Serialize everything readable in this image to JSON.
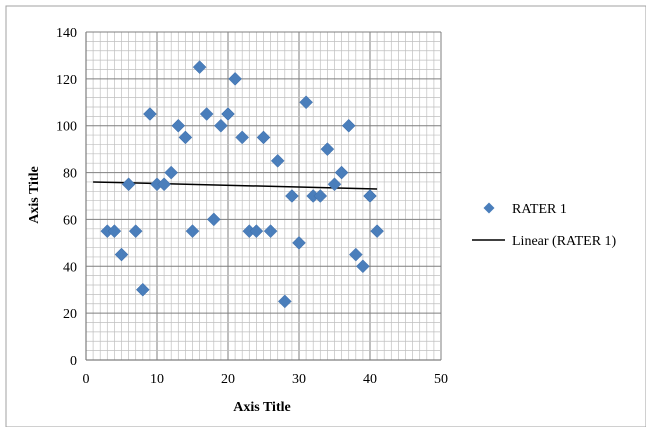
{
  "chart_data": {
    "type": "scatter",
    "title": "",
    "xlabel": "Axis Title",
    "ylabel": "Axis Title",
    "xlim": [
      0,
      50
    ],
    "ylim": [
      0,
      140
    ],
    "x_ticks": [
      0,
      10,
      20,
      30,
      40,
      50
    ],
    "y_ticks": [
      0,
      20,
      40,
      60,
      80,
      100,
      120,
      140
    ],
    "grid": true,
    "legend_position": "right",
    "series": [
      {
        "name": "RATER 1",
        "marker": "diamond",
        "color": "#4a7ebb",
        "x": [
          3,
          4,
          5,
          6,
          7,
          8,
          9,
          10,
          11,
          12,
          13,
          14,
          15,
          16,
          17,
          18,
          19,
          20,
          21,
          22,
          23,
          24,
          25,
          26,
          27,
          28,
          29,
          30,
          31,
          32,
          33,
          34,
          35,
          36,
          37,
          38,
          39,
          40,
          41
        ],
        "y": [
          55,
          55,
          45,
          75,
          55,
          30,
          105,
          75,
          75,
          80,
          100,
          95,
          55,
          125,
          105,
          60,
          100,
          105,
          120,
          95,
          55,
          55,
          95,
          55,
          85,
          25,
          70,
          50,
          110,
          70,
          70,
          90,
          75,
          80,
          100,
          45,
          40,
          70,
          55
        ]
      }
    ],
    "trendline": {
      "name": "Linear (RATER 1)",
      "type": "linear",
      "color": "#000000",
      "x": [
        1,
        41
      ],
      "y": [
        76,
        73
      ]
    }
  }
}
